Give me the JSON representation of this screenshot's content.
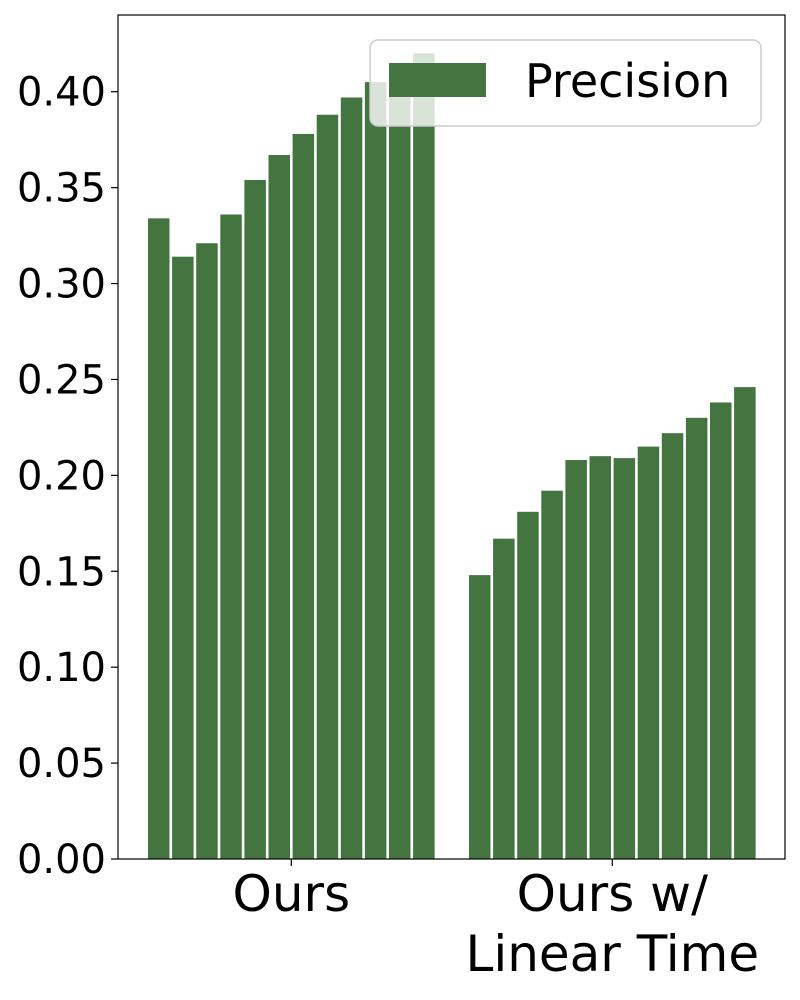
{
  "chart_data": {
    "type": "bar",
    "legend": {
      "entries": [
        "Precision"
      ],
      "placement": "top-right"
    },
    "ylim": [
      0,
      0.44
    ],
    "yticks": [
      "0.00",
      "0.05",
      "0.10",
      "0.15",
      "0.20",
      "0.25",
      "0.30",
      "0.35",
      "0.40"
    ],
    "bar_color": "#44743f",
    "groups": [
      {
        "label_lines": [
          "Ours"
        ],
        "values": [
          0.334,
          0.314,
          0.321,
          0.336,
          0.354,
          0.367,
          0.378,
          0.388,
          0.397,
          0.405,
          0.41,
          0.42
        ]
      },
      {
        "label_lines": [
          "Ours w/",
          "Linear Time"
        ],
        "values": [
          0.148,
          0.167,
          0.181,
          0.192,
          0.208,
          0.21,
          0.209,
          0.215,
          0.222,
          0.23,
          0.238,
          0.246
        ]
      }
    ],
    "series": [
      {
        "name": "Precision"
      }
    ],
    "grid": false
  }
}
